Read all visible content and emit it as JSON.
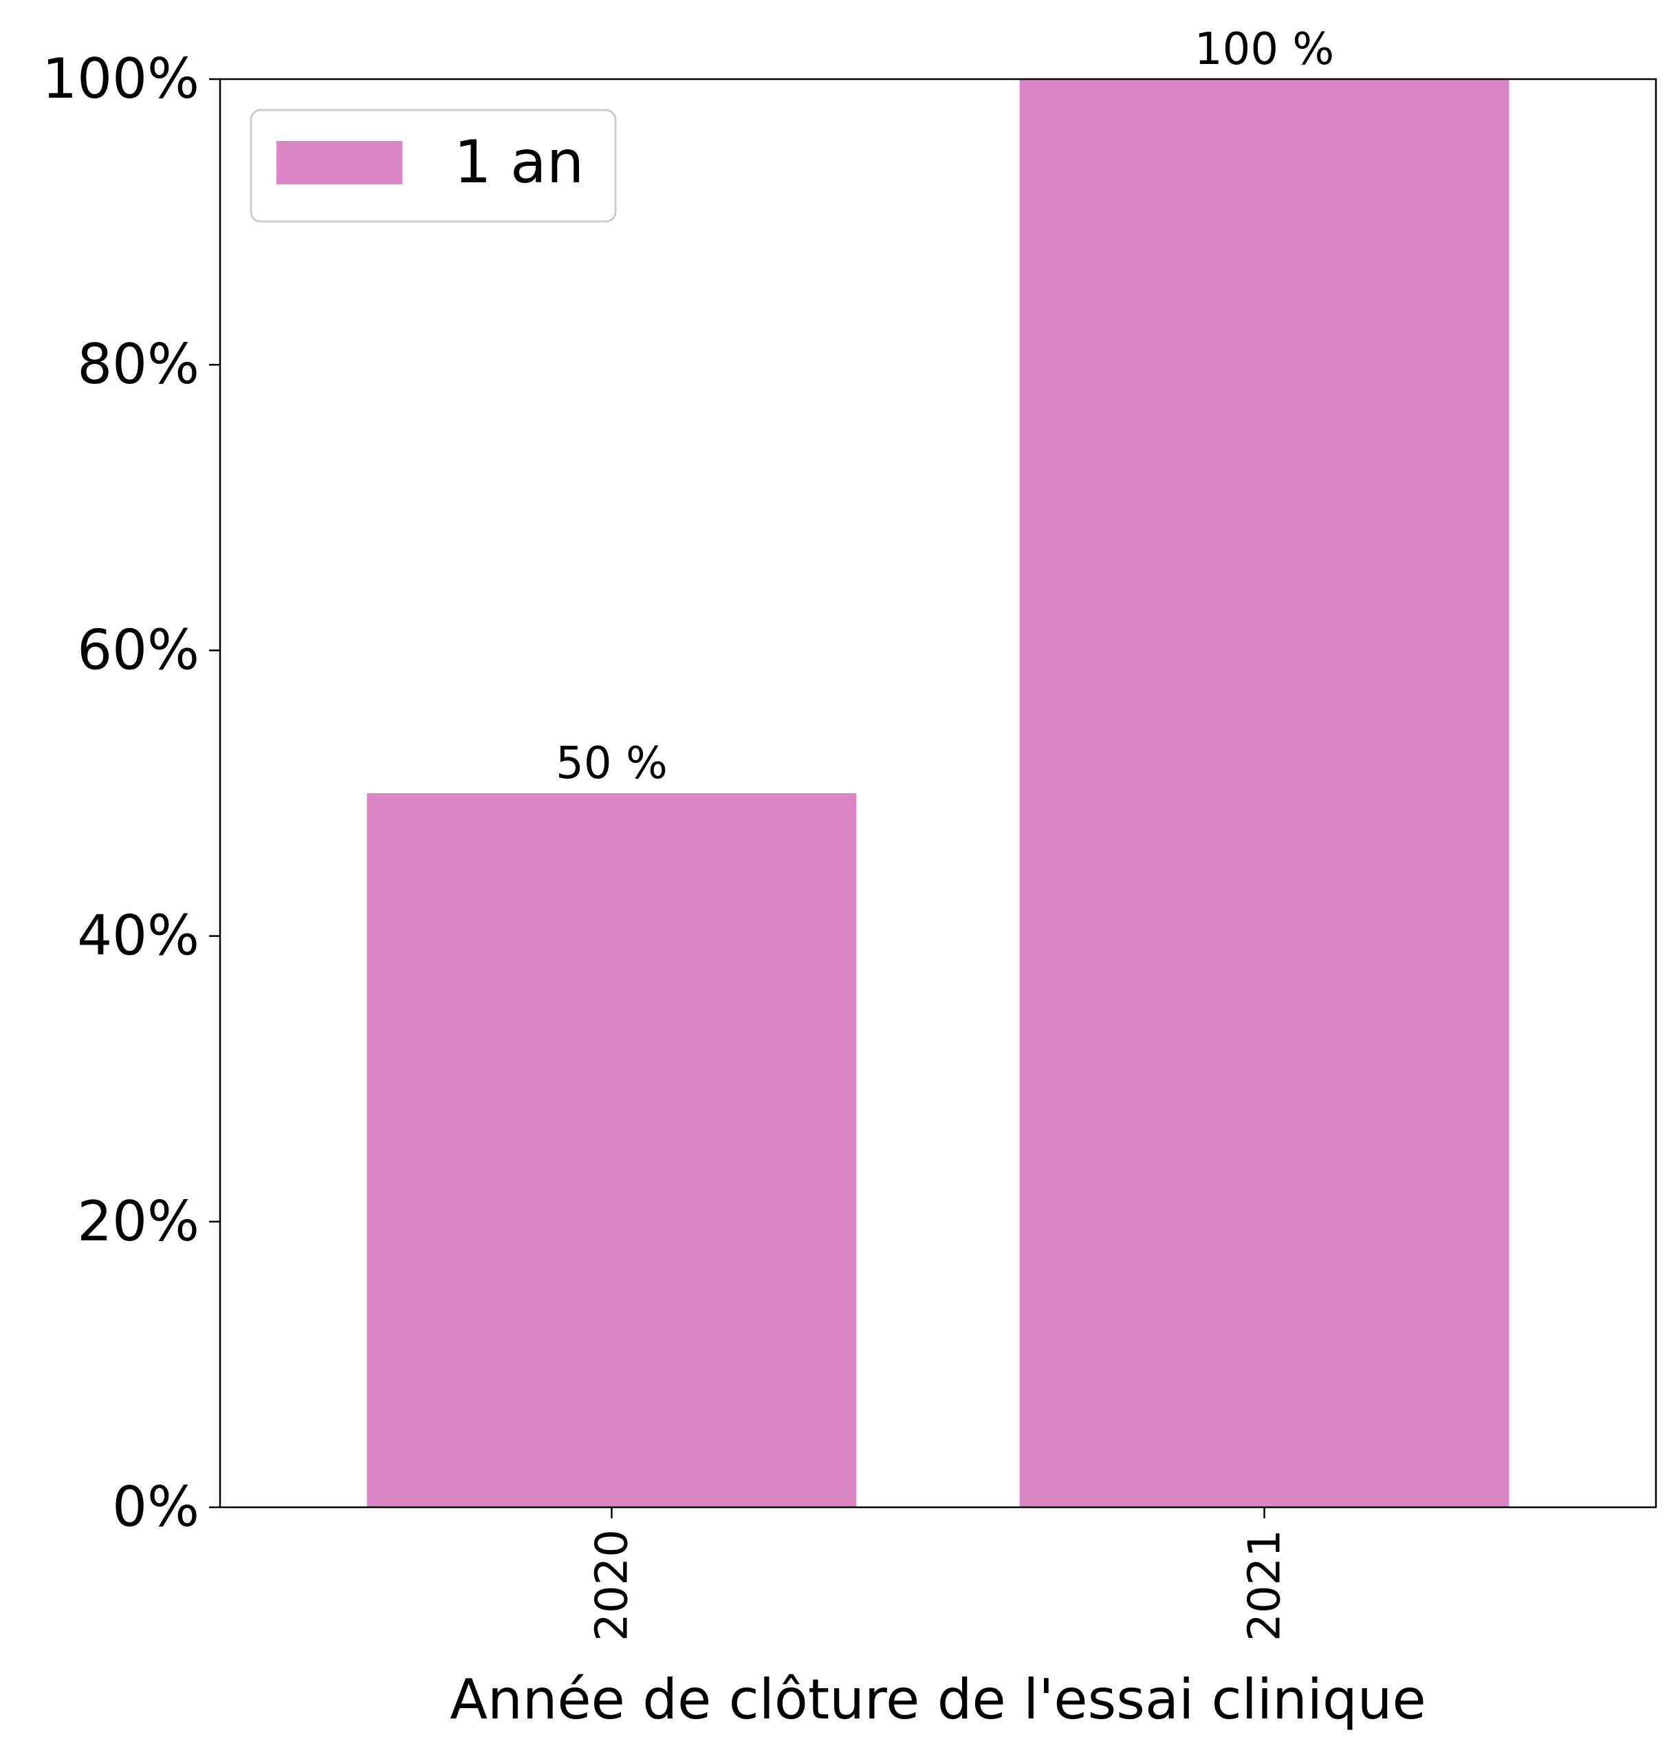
{
  "chart_data": {
    "type": "bar",
    "categories": [
      "2020",
      "2021"
    ],
    "series": [
      {
        "name": "1 an",
        "values": [
          50,
          100
        ],
        "data_labels": [
          "50 %",
          "100 %"
        ],
        "color": "#db87c6"
      }
    ],
    "title": "",
    "xlabel": "Année de clôture de l'essai clinique",
    "ylabel": "",
    "ylim": [
      0,
      100
    ],
    "yticks": [
      0,
      20,
      40,
      60,
      80,
      100
    ],
    "ytick_labels": [
      "0%",
      "20%",
      "40%",
      "60%",
      "80%",
      "100%"
    ],
    "xtick_rotation": "vertical",
    "grid": false,
    "legend": {
      "position": "top-left",
      "entries": [
        "1 an"
      ]
    }
  }
}
